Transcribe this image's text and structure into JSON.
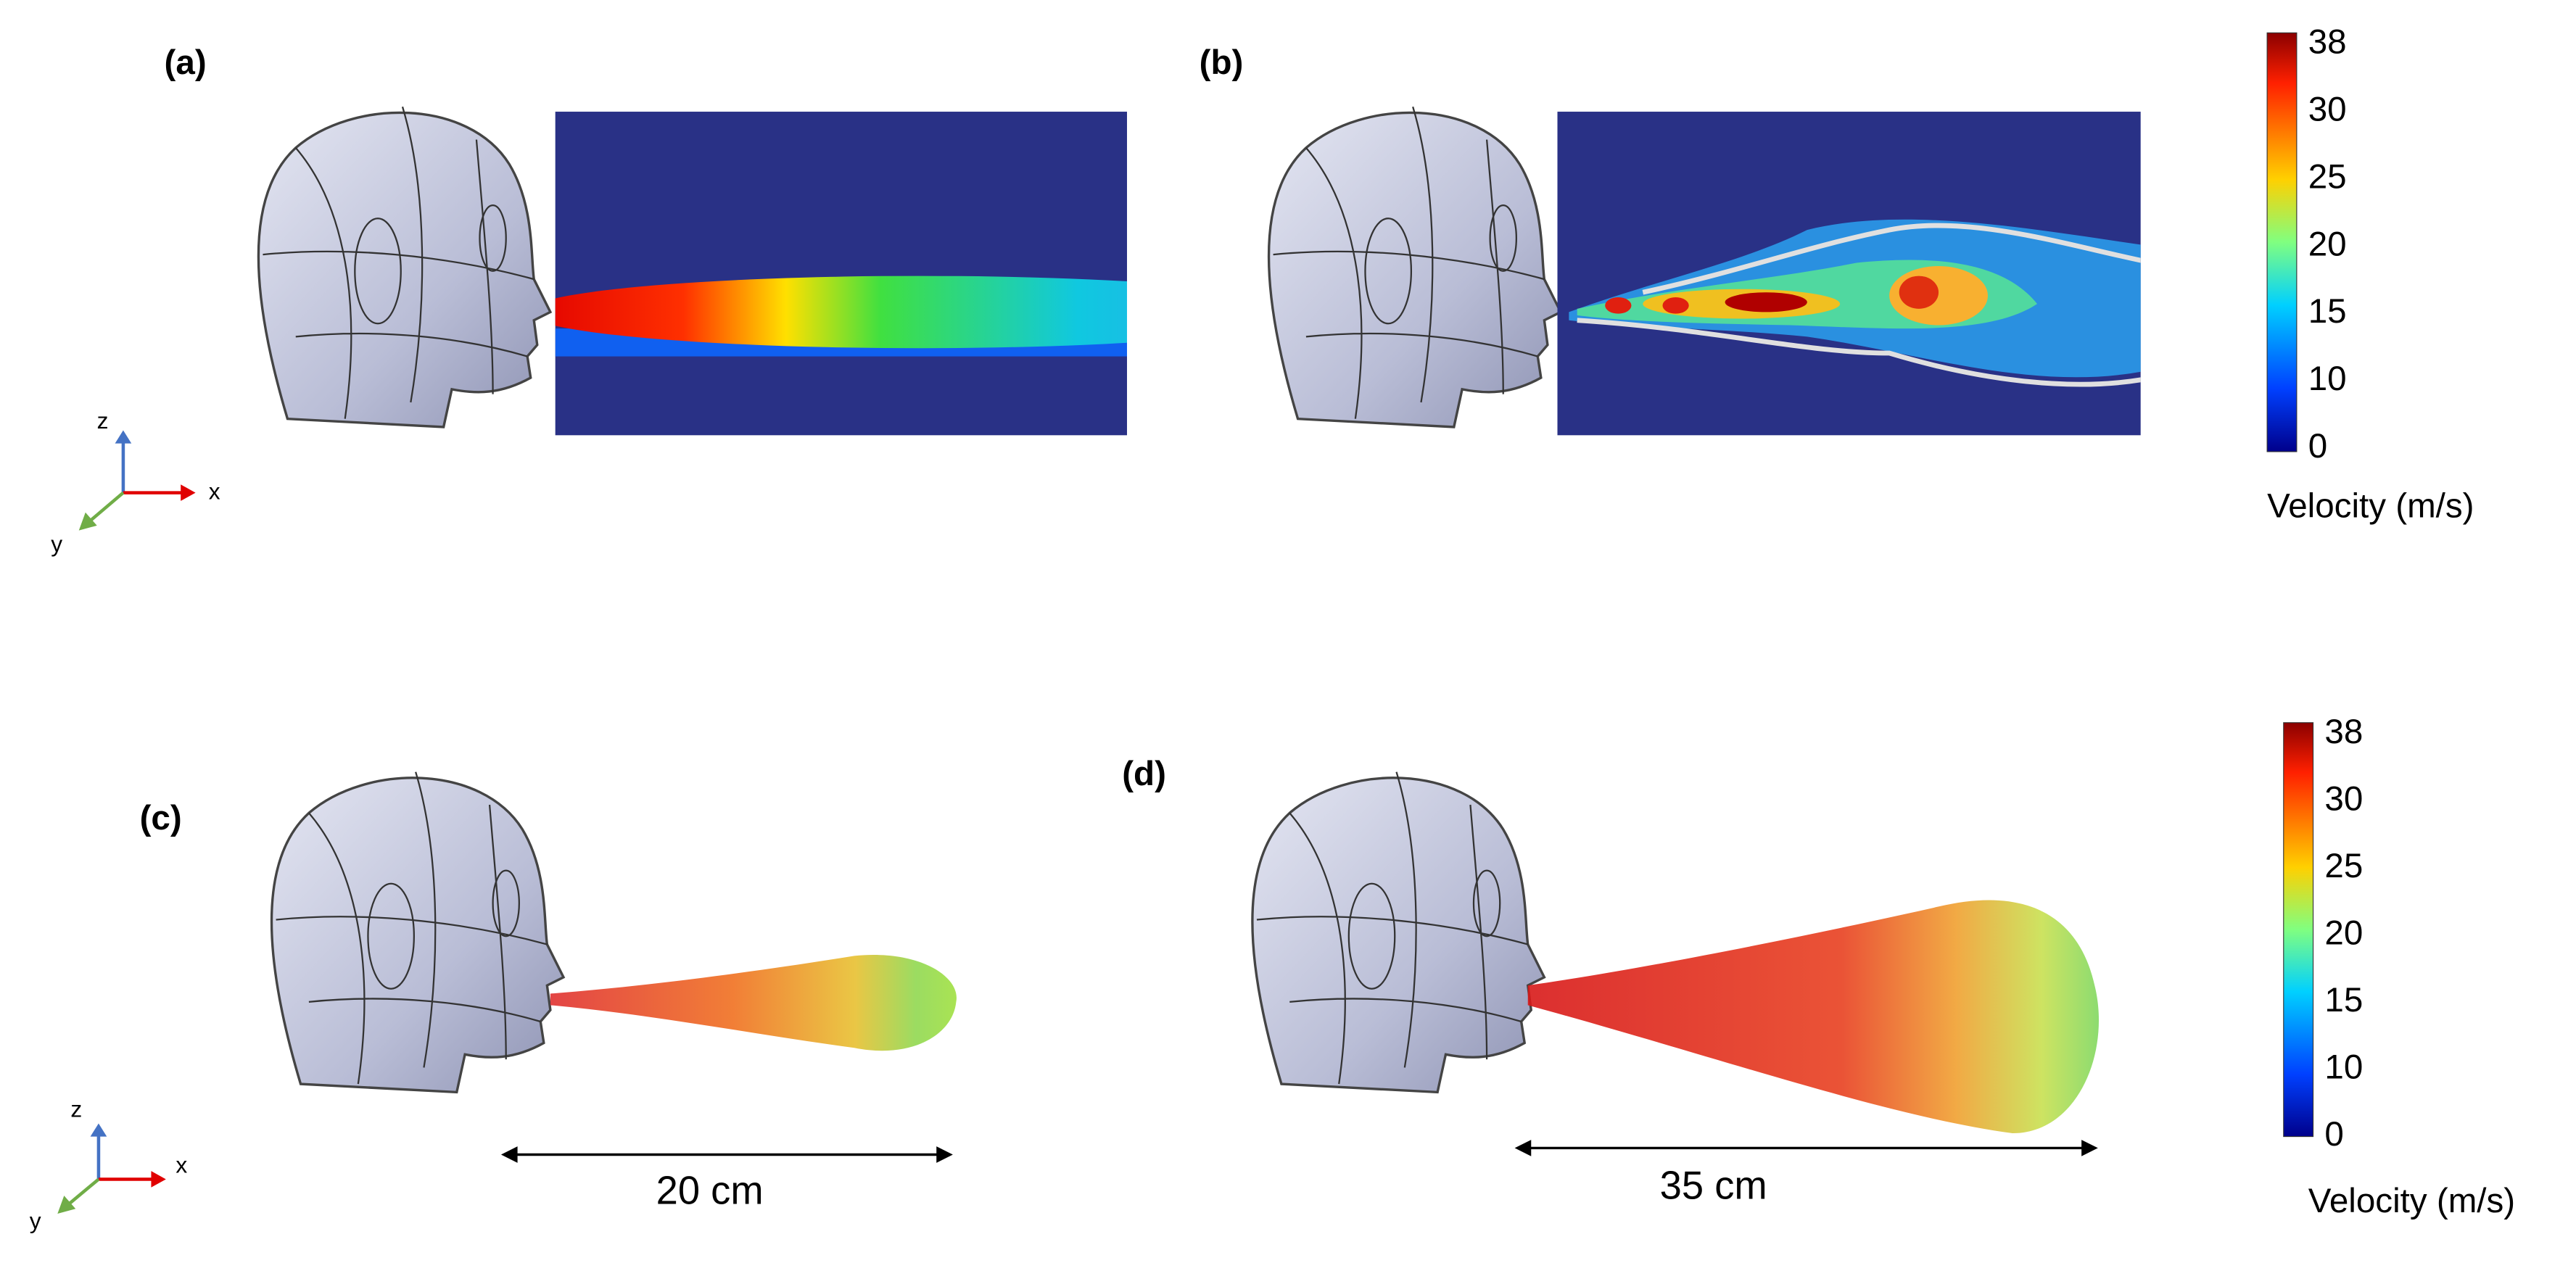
{
  "panels": [
    {
      "label": "(a)"
    },
    {
      "label": "(b)"
    },
    {
      "label": "(c)",
      "distance": "20 cm"
    },
    {
      "label": "(d)",
      "distance": "35 cm"
    }
  ],
  "colorbars": [
    {
      "ticks": [
        38,
        30,
        25,
        20,
        15,
        10,
        0
      ],
      "label": "Velocity (m/s)"
    },
    {
      "ticks": [
        38,
        30,
        25,
        20,
        15,
        10,
        0
      ],
      "label": "Velocity (m/s)"
    }
  ],
  "axes": [
    {
      "z": "z",
      "x": "x",
      "y": "y"
    },
    {
      "z": "z",
      "x": "x",
      "y": "y"
    }
  ]
}
